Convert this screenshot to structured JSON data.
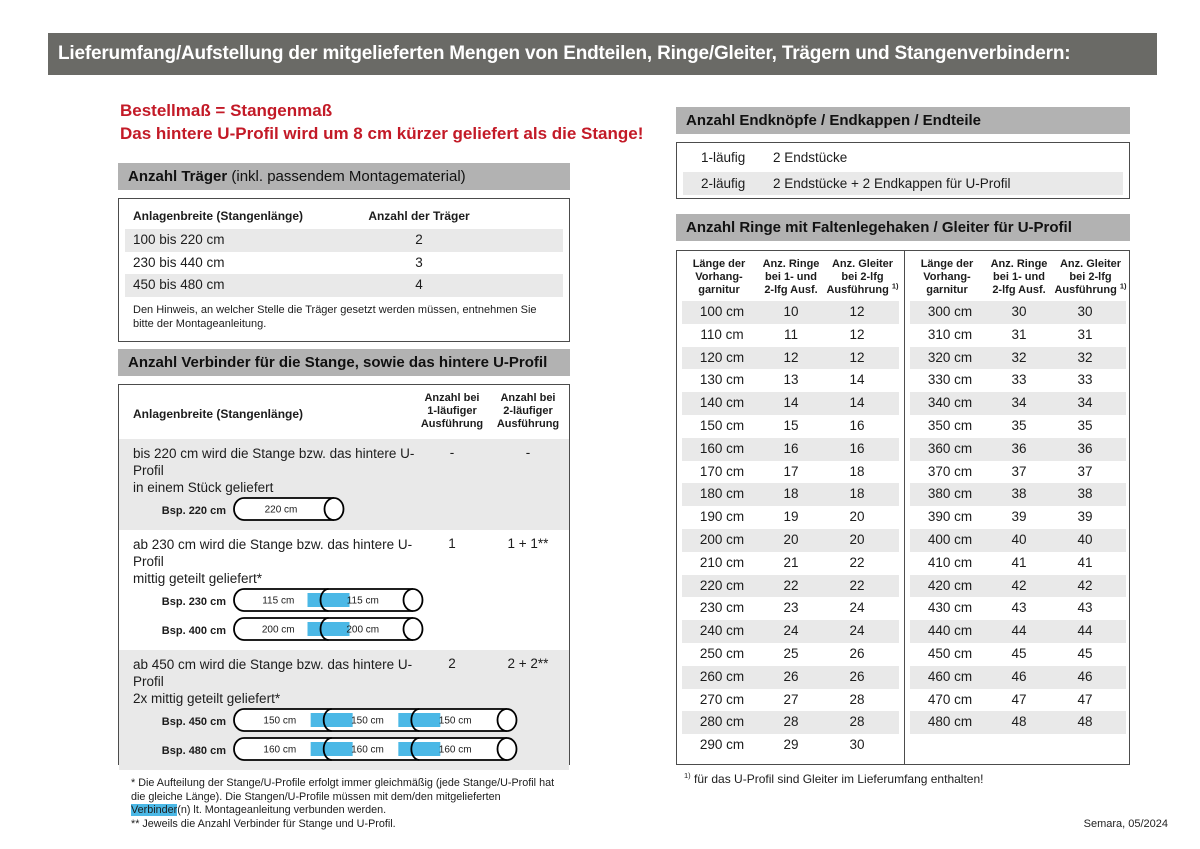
{
  "banner": {
    "title": "Lieferumfang/Aufstellung der mitgelieferten Mengen von Endteilen, Ringe/Gleiter, Trägern und Stangenverbindern:"
  },
  "notice": {
    "line1": "Bestellmaß = Stangenmaß",
    "line2": "Das hintere U-Profil wird um 8 cm kürzer geliefert als die Stange!"
  },
  "traeger": {
    "title_bold": "Anzahl Träger",
    "title_rest": " (inkl. passendem Montagematerial)",
    "col1": "Anlagenbreite (Stangenlänge)",
    "col2": "Anzahl der Träger",
    "rows": [
      [
        "100 bis 220 cm",
        "2"
      ],
      [
        "230 bis 440 cm",
        "3"
      ],
      [
        "450 bis 480 cm",
        "4"
      ]
    ],
    "note": "Den Hinweis, an welcher Stelle die Träger gesetzt werden müssen, entnehmen Sie bitte der Montageanleitung."
  },
  "verbinder": {
    "title": "Anzahl Verbinder für die Stange, sowie das hintere U-Profil",
    "col1": "Anlagenbreite (Stangenlänge)",
    "col2_lines": [
      "Anzahl bei",
      "1-läufiger",
      "Ausführung"
    ],
    "col3_lines": [
      "Anzahl bei",
      "2-läufiger",
      "Ausführung"
    ],
    "rows": [
      {
        "lines": [
          "bis 220 cm wird die Stange bzw. das hintere U-Profil",
          "in einem Stück geliefert"
        ],
        "val1": "-",
        "val2": "-",
        "rods": [
          {
            "label": "Bsp. 220 cm",
            "segments": [
              "220 cm"
            ]
          }
        ]
      },
      {
        "lines": [
          "ab 230 cm wird die Stange bzw. das hintere U-Profil",
          "mittig geteilt geliefert*"
        ],
        "val1": "1",
        "val2": "1 + 1**",
        "rods": [
          {
            "label": "Bsp. 230 cm",
            "segments": [
              "115 cm",
              "115 cm"
            ]
          },
          {
            "label": "Bsp. 400 cm",
            "segments": [
              "200 cm",
              "200 cm"
            ]
          }
        ]
      },
      {
        "lines": [
          "ab 450 cm wird die Stange bzw. das hintere U-Profil",
          "2x mittig geteilt geliefert*"
        ],
        "val1": "2",
        "val2": "2 + 2**",
        "rods": [
          {
            "label": "Bsp. 450 cm",
            "segments": [
              "150 cm",
              "150 cm",
              "150 cm"
            ]
          },
          {
            "label": "Bsp. 480 cm",
            "segments": [
              "160 cm",
              "160 cm",
              "160 cm"
            ]
          }
        ]
      }
    ],
    "fn1_pre": "* Die Aufteilung der Stange/U-Profile erfolgt immer gleichmäßig (jede Stange/U-Profil hat die gleiche Länge). Die Stangen/U-Profile müssen mit dem/den mitgelieferten ",
    "fn1_highlight": "Verbinder",
    "fn1_post": "(n) lt. Montageanleitung verbunden werden.",
    "fn2": "** Jeweils die Anzahl Verbinder für Stange und U-Profil."
  },
  "endteile": {
    "title": "Anzahl Endknöpfe / Endkappen / Endteile",
    "rows": [
      [
        "1-läufig",
        "2 Endstücke"
      ],
      [
        "2-läufig",
        "2 Endstücke + 2 Endkappen für U-Profil"
      ]
    ]
  },
  "ringe": {
    "title": "Anzahl Ringe mit Faltenlegehaken / Gleiter für U-Profil",
    "col1_lines": [
      "Länge der",
      "Vorhang-",
      "garnitur"
    ],
    "col2_lines": [
      "Anz. Ringe",
      "bei 1- und",
      "2-lfg Ausf."
    ],
    "col3_lines": [
      "Anz. Gleiter",
      "bei 2-lfg"
    ],
    "col3_last": "Ausführung",
    "col3_sup": "1)",
    "left_rows": [
      [
        "100 cm",
        "10",
        "12"
      ],
      [
        "110 cm",
        "11",
        "12"
      ],
      [
        "120 cm",
        "12",
        "12"
      ],
      [
        "130 cm",
        "13",
        "14"
      ],
      [
        "140 cm",
        "14",
        "14"
      ],
      [
        "150 cm",
        "15",
        "16"
      ],
      [
        "160 cm",
        "16",
        "16"
      ],
      [
        "170 cm",
        "17",
        "18"
      ],
      [
        "180 cm",
        "18",
        "18"
      ],
      [
        "190 cm",
        "19",
        "20"
      ],
      [
        "200 cm",
        "20",
        "20"
      ],
      [
        "210 cm",
        "21",
        "22"
      ],
      [
        "220 cm",
        "22",
        "22"
      ],
      [
        "230 cm",
        "23",
        "24"
      ],
      [
        "240 cm",
        "24",
        "24"
      ],
      [
        "250 cm",
        "25",
        "26"
      ],
      [
        "260 cm",
        "26",
        "26"
      ],
      [
        "270 cm",
        "27",
        "28"
      ],
      [
        "280 cm",
        "28",
        "28"
      ],
      [
        "290 cm",
        "29",
        "30"
      ]
    ],
    "right_rows": [
      [
        "300 cm",
        "30",
        "30"
      ],
      [
        "310 cm",
        "31",
        "31"
      ],
      [
        "320 cm",
        "32",
        "32"
      ],
      [
        "330 cm",
        "33",
        "33"
      ],
      [
        "340 cm",
        "34",
        "34"
      ],
      [
        "350 cm",
        "35",
        "35"
      ],
      [
        "360 cm",
        "36",
        "36"
      ],
      [
        "370 cm",
        "37",
        "37"
      ],
      [
        "380 cm",
        "38",
        "38"
      ],
      [
        "390 cm",
        "39",
        "39"
      ],
      [
        "400 cm",
        "40",
        "40"
      ],
      [
        "410 cm",
        "41",
        "41"
      ],
      [
        "420 cm",
        "42",
        "42"
      ],
      [
        "430 cm",
        "43",
        "43"
      ],
      [
        "440 cm",
        "44",
        "44"
      ],
      [
        "450 cm",
        "45",
        "45"
      ],
      [
        "460 cm",
        "46",
        "46"
      ],
      [
        "470 cm",
        "47",
        "47"
      ],
      [
        "480 cm",
        "48",
        "48"
      ]
    ],
    "footnote_sup": "1)",
    "footnote": " für das U-Profil sind Gleiter im Lieferumfang enthalten!"
  },
  "footer": "Semara, 05/2024",
  "colors": {
    "banner_bg": "#6a6a66",
    "section_header_bg": "#b2b2b2",
    "accent_red": "#c31a27",
    "row_stripe": "#e9e9e9",
    "connector_blue": "#4bb8e6"
  }
}
